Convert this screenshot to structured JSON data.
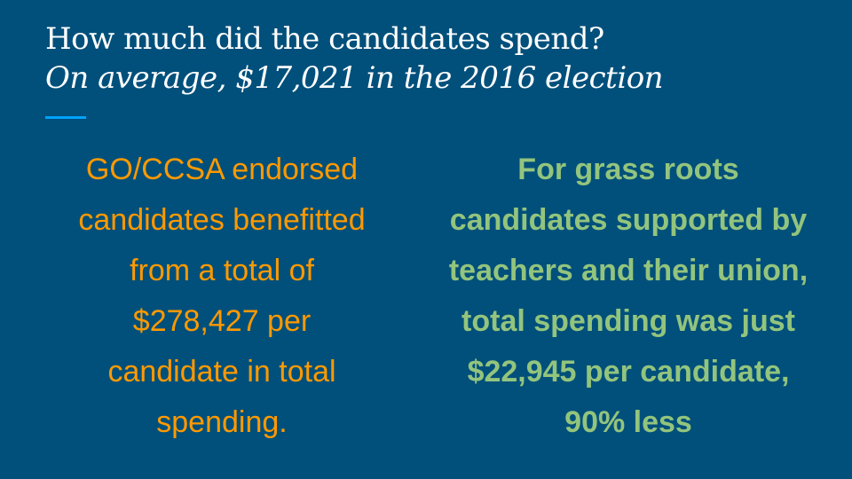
{
  "slide": {
    "title": "How much did the candidates spend?",
    "subtitle": "On average, $17,021 in the 2016 election",
    "colors": {
      "background": "#01507b",
      "title": "#ffffff",
      "accent_rule": "#00a2ff",
      "left_text": "#ff9900",
      "right_text": "#93c47d"
    },
    "left_column": {
      "lines": [
        "GO/CCSA endorsed",
        "candidates benefitted",
        "from a total of",
        "$278,427 per",
        "candidate in total",
        "spending."
      ]
    },
    "right_column": {
      "lines": [
        "For grass roots",
        "candidates supported by",
        "teachers and their union,",
        "total spending was just",
        "$22,945 per candidate,",
        "90% less"
      ]
    }
  }
}
